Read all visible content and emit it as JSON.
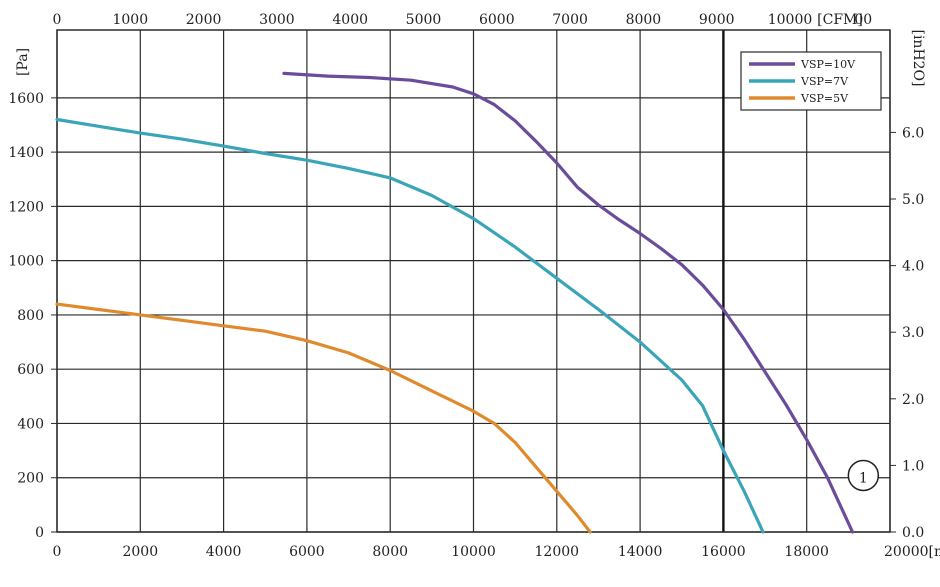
{
  "chart_data": {
    "type": "line",
    "xlabel": "[m",
    "ylabel": "[Pa]",
    "x_top_label": "[CFM]",
    "y_right_label": "[inH2O]",
    "x_ticks": [
      "0",
      "2000",
      "4000",
      "6000",
      "8000",
      "10000",
      "12000",
      "14000",
      "16000",
      "18000",
      "20000"
    ],
    "y_ticks": [
      "0",
      "200",
      "400",
      "600",
      "800",
      "1000",
      "1200",
      "1400",
      "1600"
    ],
    "x_top_ticks": [
      "0",
      "1000",
      "2000",
      "3000",
      "4000",
      "5000",
      "6000",
      "7000",
      "8000",
      "9000",
      "10000",
      "00"
    ],
    "y_right_ticks": [
      "0.0",
      "1.0",
      "2.0",
      "3.0",
      "4.0",
      "5.0",
      "6.0"
    ],
    "xlim": [
      0,
      20000
    ],
    "ylim": [
      0,
      1850
    ],
    "grid": true,
    "legend_position": "top-right",
    "marker_label": "1",
    "marker_x": 19600,
    "marker_y": 190,
    "reference_line_x": 16000,
    "series": [
      {
        "name": "VSP=10V",
        "color": "#6b4c9a",
        "x": [
          5450,
          6500,
          7500,
          8500,
          9500,
          10000,
          10500,
          11000,
          11500,
          12000,
          12500,
          13000,
          13500,
          14000,
          14500,
          15000,
          15500,
          16000,
          16500,
          17000,
          17500,
          18000,
          18500,
          19100
        ],
        "y": [
          1690,
          1680,
          1675,
          1665,
          1640,
          1615,
          1575,
          1515,
          1440,
          1360,
          1270,
          1205,
          1150,
          1100,
          1045,
          985,
          910,
          820,
          710,
          590,
          470,
          340,
          200,
          0
        ]
      },
      {
        "name": "VSP=7V",
        "color": "#3aa5b8",
        "x": [
          0,
          1000,
          2000,
          3000,
          4000,
          5000,
          6000,
          7000,
          8000,
          9000,
          10000,
          11000,
          12000,
          13000,
          14000,
          15000,
          15500,
          16000,
          16500,
          16950
        ],
        "y": [
          1520,
          1495,
          1470,
          1448,
          1422,
          1395,
          1370,
          1340,
          1305,
          1240,
          1155,
          1050,
          935,
          820,
          700,
          560,
          465,
          300,
          150,
          0
        ]
      },
      {
        "name": "VSP=5V",
        "color": "#e08a2e",
        "x": [
          0,
          1000,
          2000,
          3000,
          4000,
          5000,
          6000,
          7000,
          8000,
          9000,
          10000,
          10500,
          11000,
          11500,
          12000,
          12500,
          12800
        ],
        "y": [
          840,
          820,
          800,
          780,
          760,
          740,
          705,
          660,
          595,
          520,
          445,
          400,
          330,
          240,
          150,
          60,
          0
        ]
      }
    ]
  }
}
